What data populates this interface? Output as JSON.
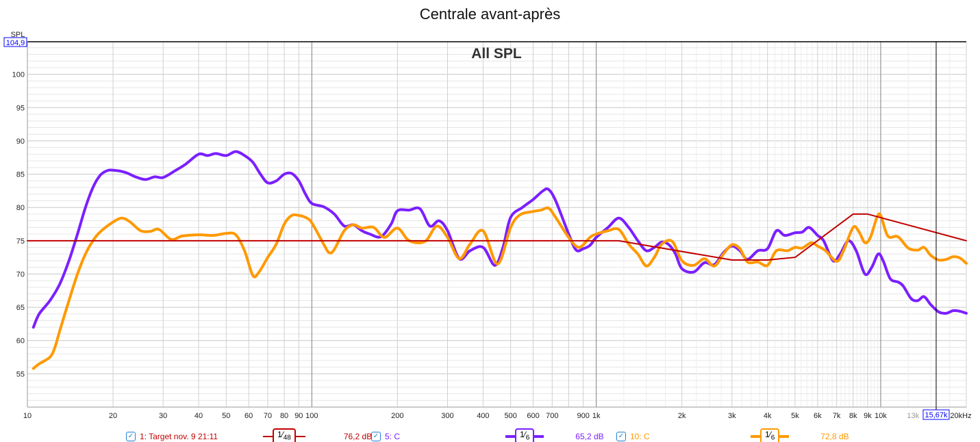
{
  "title": "Centrale avant-après",
  "chart_data": {
    "type": "line",
    "title": "Centrale avant-après",
    "subtitle": "All SPL",
    "ylabel": "SPL",
    "xlabel": "",
    "xscale": "log",
    "xlim": [
      10,
      20000
    ],
    "ylim": [
      50,
      104.9
    ],
    "y_max_label": "104,9",
    "cursor_label": "15,67k",
    "cursor_x": 15670,
    "yticks": [
      55,
      60,
      65,
      70,
      75,
      80,
      85,
      90,
      95,
      100
    ],
    "xticks": [
      {
        "v": 10,
        "t": "10"
      },
      {
        "v": 20,
        "t": "20"
      },
      {
        "v": 30,
        "t": "30"
      },
      {
        "v": 40,
        "t": "40"
      },
      {
        "v": 50,
        "t": "50"
      },
      {
        "v": 60,
        "t": "60"
      },
      {
        "v": 70,
        "t": "70"
      },
      {
        "v": 80,
        "t": "80"
      },
      {
        "v": 90,
        "t": "90"
      },
      {
        "v": 100,
        "t": "100"
      },
      {
        "v": 200,
        "t": "200"
      },
      {
        "v": 300,
        "t": "300"
      },
      {
        "v": 400,
        "t": "400"
      },
      {
        "v": 500,
        "t": "500"
      },
      {
        "v": 600,
        "t": "600"
      },
      {
        "v": 700,
        "t": "700"
      },
      {
        "v": 900,
        "t": "900"
      },
      {
        "v": 1000,
        "t": "1k"
      },
      {
        "v": 2000,
        "t": "2k"
      },
      {
        "v": 3000,
        "t": "3k"
      },
      {
        "v": 4000,
        "t": "4k"
      },
      {
        "v": 5000,
        "t": "5k"
      },
      {
        "v": 6000,
        "t": "6k"
      },
      {
        "v": 7000,
        "t": "7k"
      },
      {
        "v": 8000,
        "t": "8k"
      },
      {
        "v": 9000,
        "t": "9k"
      },
      {
        "v": 10000,
        "t": "10k"
      },
      {
        "v": 13000,
        "t": "13k",
        "muted": true
      },
      {
        "v": 20000,
        "t": "20kHz"
      }
    ],
    "grid": true,
    "series": [
      {
        "name": "1: Target nov. 9 21:11",
        "color": "#c00000",
        "width": 2,
        "smoothing": "1/48",
        "value": "76,2 dB",
        "points": [
          [
            10,
            75
          ],
          [
            1200,
            75
          ],
          [
            3000,
            72.1
          ],
          [
            4000,
            72.1
          ],
          [
            5000,
            72.5
          ],
          [
            8000,
            79
          ],
          [
            9000,
            79
          ],
          [
            20000,
            75
          ]
        ]
      },
      {
        "name": "5: C",
        "color": "#7b1fff",
        "width": 4,
        "smoothing": "1/6",
        "value": "65,2 dB",
        "points": [
          [
            10.5,
            62
          ],
          [
            11,
            64
          ],
          [
            12,
            66
          ],
          [
            13,
            68.5
          ],
          [
            14,
            72
          ],
          [
            15,
            76
          ],
          [
            16,
            80
          ],
          [
            17,
            83
          ],
          [
            18,
            84.8
          ],
          [
            19,
            85.5
          ],
          [
            20,
            85.6
          ],
          [
            22,
            85.3
          ],
          [
            24,
            84.6
          ],
          [
            26,
            84.2
          ],
          [
            28,
            84.6
          ],
          [
            30,
            84.5
          ],
          [
            33,
            85.5
          ],
          [
            36,
            86.5
          ],
          [
            40,
            88
          ],
          [
            43,
            87.8
          ],
          [
            46,
            88.1
          ],
          [
            50,
            87.8
          ],
          [
            54,
            88.4
          ],
          [
            58,
            87.8
          ],
          [
            62,
            86.8
          ],
          [
            66,
            85
          ],
          [
            70,
            83.7
          ],
          [
            75,
            84
          ],
          [
            80,
            85
          ],
          [
            85,
            85.1
          ],
          [
            90,
            84
          ],
          [
            95,
            82
          ],
          [
            100,
            80.6
          ],
          [
            110,
            80.1
          ],
          [
            120,
            79
          ],
          [
            130,
            77.2
          ],
          [
            140,
            77.4
          ],
          [
            150,
            76.5
          ],
          [
            160,
            76
          ],
          [
            175,
            75.6
          ],
          [
            190,
            77.5
          ],
          [
            200,
            79.5
          ],
          [
            220,
            79.6
          ],
          [
            240,
            79.8
          ],
          [
            260,
            77.2
          ],
          [
            280,
            78
          ],
          [
            300,
            76.5
          ],
          [
            330,
            72.3
          ],
          [
            360,
            73.5
          ],
          [
            400,
            74
          ],
          [
            440,
            71.3
          ],
          [
            470,
            74
          ],
          [
            500,
            78.5
          ],
          [
            550,
            80
          ],
          [
            600,
            81.2
          ],
          [
            650,
            82.5
          ],
          [
            680,
            82.7
          ],
          [
            720,
            81
          ],
          [
            800,
            76
          ],
          [
            850,
            73.6
          ],
          [
            900,
            73.8
          ],
          [
            950,
            74.3
          ],
          [
            1000,
            75.5
          ],
          [
            1100,
            77
          ],
          [
            1200,
            78.4
          ],
          [
            1300,
            77
          ],
          [
            1400,
            75
          ],
          [
            1500,
            73.5
          ],
          [
            1600,
            74
          ],
          [
            1700,
            74.8
          ],
          [
            1800,
            74.4
          ],
          [
            1900,
            73
          ],
          [
            2000,
            70.8
          ],
          [
            2200,
            70.3
          ],
          [
            2400,
            71.7
          ],
          [
            2600,
            71.4
          ],
          [
            2800,
            73.2
          ],
          [
            3000,
            74.2
          ],
          [
            3200,
            73.5
          ],
          [
            3400,
            72.2
          ],
          [
            3700,
            73.5
          ],
          [
            4000,
            73.8
          ],
          [
            4300,
            76.5
          ],
          [
            4600,
            75.8
          ],
          [
            5000,
            76.2
          ],
          [
            5300,
            76.3
          ],
          [
            5600,
            77
          ],
          [
            6000,
            75.8
          ],
          [
            6300,
            75
          ],
          [
            6800,
            72
          ],
          [
            7200,
            73
          ],
          [
            7700,
            75
          ],
          [
            8200,
            73.5
          ],
          [
            8800,
            70
          ],
          [
            9300,
            71
          ],
          [
            9800,
            73
          ],
          [
            10200,
            72
          ],
          [
            10800,
            69.3
          ],
          [
            11500,
            68.8
          ],
          [
            12000,
            68.2
          ],
          [
            12800,
            66.3
          ],
          [
            13500,
            66
          ],
          [
            14200,
            66.6
          ],
          [
            15000,
            65.4
          ],
          [
            16000,
            64.3
          ],
          [
            17000,
            64.1
          ],
          [
            18000,
            64.5
          ],
          [
            19000,
            64.4
          ],
          [
            20000,
            64.1
          ]
        ]
      },
      {
        "name": "10: C",
        "color": "#ff9900",
        "width": 4,
        "smoothing": "1/6",
        "value": "72,8 dB",
        "points": [
          [
            10.5,
            55.8
          ],
          [
            11,
            56.5
          ],
          [
            12,
            57.5
          ],
          [
            12.5,
            59
          ],
          [
            13,
            61.5
          ],
          [
            14,
            66
          ],
          [
            15,
            70
          ],
          [
            16,
            73
          ],
          [
            17,
            75
          ],
          [
            18,
            76.3
          ],
          [
            20,
            77.8
          ],
          [
            21.5,
            78.4
          ],
          [
            23,
            77.8
          ],
          [
            25,
            76.5
          ],
          [
            27,
            76.4
          ],
          [
            29,
            76.7
          ],
          [
            32,
            75.2
          ],
          [
            35,
            75.7
          ],
          [
            40,
            75.9
          ],
          [
            45,
            75.8
          ],
          [
            50,
            76.1
          ],
          [
            54,
            75.9
          ],
          [
            58,
            73.5
          ],
          [
            62,
            69.8
          ],
          [
            65,
            70.2
          ],
          [
            70,
            72.5
          ],
          [
            75,
            74.5
          ],
          [
            80,
            77.5
          ],
          [
            85,
            78.8
          ],
          [
            90,
            78.8
          ],
          [
            95,
            78.5
          ],
          [
            100,
            77.7
          ],
          [
            110,
            74.5
          ],
          [
            115,
            73.2
          ],
          [
            120,
            73.7
          ],
          [
            130,
            76.5
          ],
          [
            140,
            77.4
          ],
          [
            150,
            76.9
          ],
          [
            165,
            77
          ],
          [
            180,
            75.5
          ],
          [
            200,
            76.9
          ],
          [
            220,
            75
          ],
          [
            250,
            74.9
          ],
          [
            275,
            77.2
          ],
          [
            300,
            75.5
          ],
          [
            330,
            72.3
          ],
          [
            360,
            74.5
          ],
          [
            400,
            76.5
          ],
          [
            450,
            71.5
          ],
          [
            500,
            77
          ],
          [
            540,
            78.9
          ],
          [
            600,
            79.4
          ],
          [
            640,
            79.6
          ],
          [
            680,
            79.9
          ],
          [
            720,
            78.5
          ],
          [
            800,
            75.5
          ],
          [
            870,
            74
          ],
          [
            950,
            75.5
          ],
          [
            1000,
            76
          ],
          [
            1100,
            76.5
          ],
          [
            1200,
            76.7
          ],
          [
            1300,
            74.5
          ],
          [
            1400,
            73
          ],
          [
            1500,
            71.2
          ],
          [
            1600,
            72.5
          ],
          [
            1700,
            74.5
          ],
          [
            1850,
            74.9
          ],
          [
            2000,
            72
          ],
          [
            2200,
            71.3
          ],
          [
            2400,
            72.3
          ],
          [
            2600,
            71.2
          ],
          [
            2800,
            73
          ],
          [
            3000,
            74.4
          ],
          [
            3200,
            73.8
          ],
          [
            3400,
            71.8
          ],
          [
            3700,
            71.8
          ],
          [
            4000,
            71.3
          ],
          [
            4300,
            73.5
          ],
          [
            4700,
            73.5
          ],
          [
            5000,
            74
          ],
          [
            5300,
            73.9
          ],
          [
            5700,
            74.7
          ],
          [
            6000,
            74.2
          ],
          [
            6400,
            73.5
          ],
          [
            7000,
            71.9
          ],
          [
            7400,
            73.5
          ],
          [
            8000,
            77
          ],
          [
            8400,
            76.3
          ],
          [
            8800,
            74.7
          ],
          [
            9200,
            75.5
          ],
          [
            9700,
            78.5
          ],
          [
            10000,
            78.8
          ],
          [
            10600,
            75.7
          ],
          [
            11500,
            75.6
          ],
          [
            12500,
            73.9
          ],
          [
            13500,
            73.6
          ],
          [
            14200,
            74
          ],
          [
            15000,
            72.8
          ],
          [
            16000,
            72.1
          ],
          [
            17000,
            72.2
          ],
          [
            18000,
            72.6
          ],
          [
            19000,
            72.4
          ],
          [
            20000,
            71.6
          ]
        ]
      }
    ]
  },
  "legend": [
    {
      "label": "1: Target nov. 9 21:11",
      "smoothing_num": "1",
      "smoothing_den": "48",
      "value": "76,2 dB"
    },
    {
      "label": "5: C",
      "smoothing_num": "1",
      "smoothing_den": "6",
      "value": "65,2 dB"
    },
    {
      "label": "10: C",
      "smoothing_num": "1",
      "smoothing_den": "6",
      "value": "72,8 dB"
    }
  ]
}
